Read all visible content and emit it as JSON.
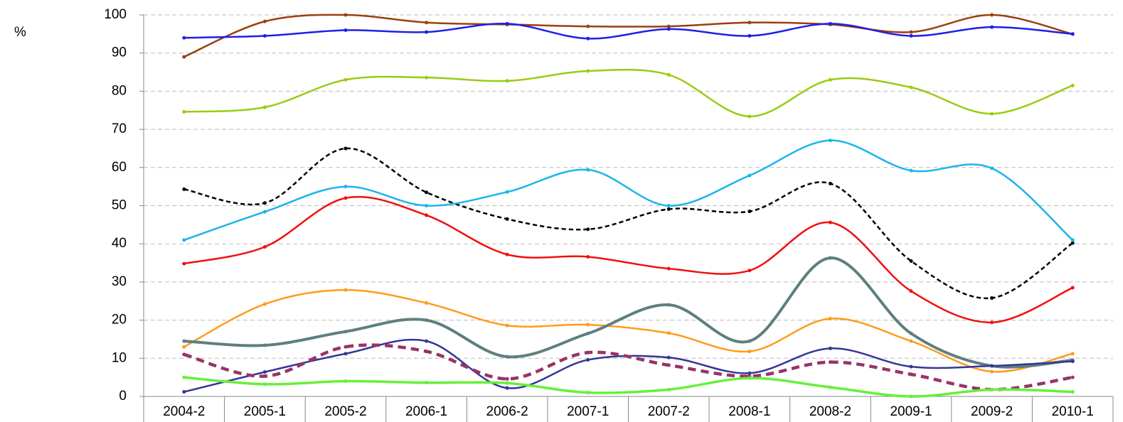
{
  "chart_data": {
    "type": "line",
    "y_label": "%",
    "categories": [
      "2004-2",
      "2005-1",
      "2005-2",
      "2006-1",
      "2006-2",
      "2007-1",
      "2007-2",
      "2008-1",
      "2008-2",
      "2009-1",
      "2009-2",
      "2010-1"
    ],
    "ylim": [
      0,
      100
    ],
    "yticks": [
      0,
      10,
      20,
      30,
      40,
      50,
      60,
      70,
      80,
      90,
      100
    ],
    "grid": true,
    "smooth": true,
    "series": [
      {
        "color": "#9c3f10",
        "width": 2.5,
        "dashed": false,
        "values": [
          89,
          98.3,
          100,
          98,
          97.5,
          97,
          97,
          98,
          97.5,
          95.5,
          100,
          95
        ]
      },
      {
        "color": "#1f1fe8",
        "width": 2.5,
        "dashed": false,
        "values": [
          94,
          94.5,
          96,
          95.5,
          97.7,
          93.8,
          96.3,
          94.5,
          97.7,
          94.5,
          96.8,
          95
        ]
      },
      {
        "color": "#99cc11",
        "width": 2.5,
        "dashed": false,
        "values": [
          74.6,
          75.8,
          83,
          83.6,
          82.7,
          85.3,
          84.3,
          73.4,
          83,
          81,
          74.1,
          81.5
        ]
      },
      {
        "color": "#000000",
        "width": 2.5,
        "dashed": true,
        "values": [
          54.3,
          50.7,
          65,
          53.5,
          46.5,
          43.8,
          49.1,
          48.5,
          55.8,
          35.5,
          25.8,
          40.2
        ]
      },
      {
        "color": "#1cb4ec",
        "width": 2.5,
        "dashed": false,
        "values": [
          41,
          48.4,
          55,
          50,
          53.6,
          59.4,
          50,
          57.9,
          67.1,
          59.2,
          59.8,
          41
        ]
      },
      {
        "color": "#f01010",
        "width": 2.5,
        "dashed": false,
        "values": [
          34.8,
          39.2,
          52,
          47.5,
          37.2,
          36.6,
          33.5,
          33,
          45.6,
          27.6,
          19.4,
          28.5
        ]
      },
      {
        "color": "#ff9b1a",
        "width": 2.5,
        "dashed": false,
        "values": [
          13,
          24.2,
          27.9,
          24.5,
          18.6,
          18.8,
          16.6,
          11.8,
          20.4,
          14.5,
          6.5,
          11.2
        ]
      },
      {
        "color": "#5f7f7f",
        "width": 4,
        "dashed": false,
        "values": [
          14.5,
          13.4,
          17,
          20,
          10.4,
          16.5,
          24,
          14.5,
          36.3,
          16.5,
          8,
          9.5
        ]
      },
      {
        "color": "#35359a",
        "width": 2.5,
        "dashed": false,
        "values": [
          1.2,
          6.4,
          11.2,
          14.5,
          2.2,
          9.6,
          10.2,
          6.1,
          12.6,
          7.8,
          8,
          9.2
        ]
      },
      {
        "color": "#993366",
        "width": 4.5,
        "dashed": true,
        "values": [
          11,
          5.3,
          13,
          11.8,
          4.6,
          11.5,
          8.2,
          5.3,
          9,
          5.8,
          1.8,
          5
        ]
      },
      {
        "color": "#66f03a",
        "width": 3.5,
        "dashed": false,
        "values": [
          5,
          3.2,
          4,
          3.6,
          3.5,
          1,
          1.8,
          4.8,
          2.4,
          0,
          1.8,
          1.2
        ]
      }
    ]
  }
}
